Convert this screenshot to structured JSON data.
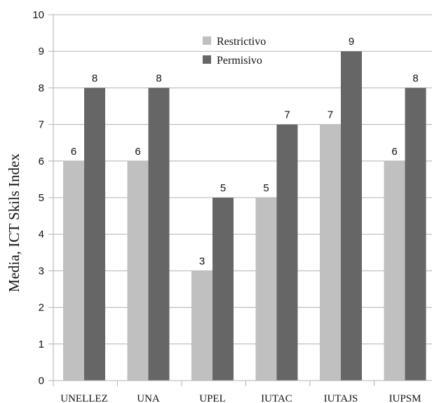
{
  "chart_data": {
    "type": "bar",
    "title": "",
    "xlabel": "",
    "ylabel": "Media, ICT Skils Index",
    "ylim": [
      0,
      10
    ],
    "yticks": [
      0,
      1,
      2,
      3,
      4,
      5,
      6,
      7,
      8,
      9,
      10
    ],
    "grid": true,
    "legend_position": "top-center",
    "categories": [
      "UNELLEZ",
      "UNA",
      "UPEL",
      "IUTAC",
      "IUTAJS",
      "IUPSM"
    ],
    "series": [
      {
        "name": "Restrictivo",
        "color": "#c0c0c0",
        "values": [
          6,
          6,
          3,
          5,
          7,
          6
        ]
      },
      {
        "name": "Permisivo",
        "color": "#666666",
        "values": [
          8,
          8,
          5,
          7,
          9,
          8
        ]
      }
    ]
  }
}
